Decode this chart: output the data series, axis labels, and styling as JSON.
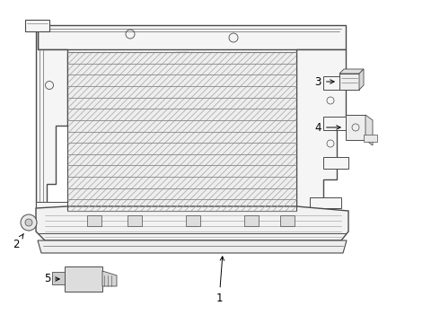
{
  "bg_color": "#ffffff",
  "lc": "#4a4a4a",
  "lc_thin": "#666666",
  "lc_hatch": "#999999",
  "figsize": [
    4.9,
    3.6
  ],
  "dpi": 100
}
